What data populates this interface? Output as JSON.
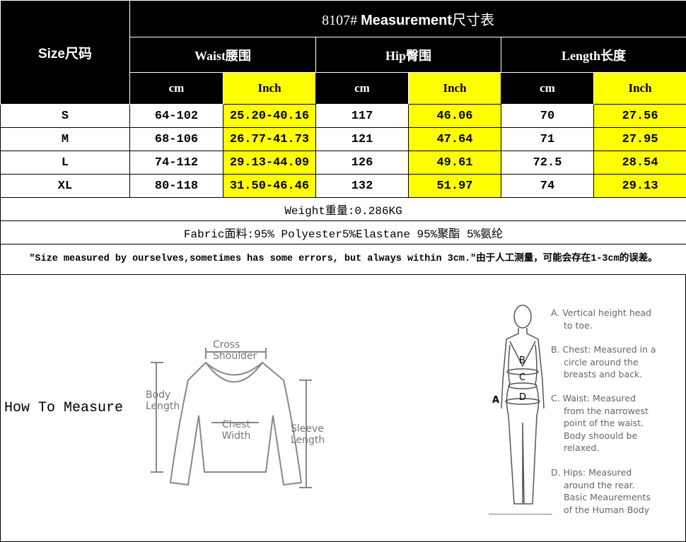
{
  "header": {
    "size": "Size尺码",
    "title_num": "8107#",
    "title_text": "Measurement",
    "title_cn": "尺寸表",
    "groups": [
      "Waist腰围",
      "Hip臀围",
      "Length长度"
    ],
    "units": [
      "cm",
      "Inch",
      "cm",
      "Inch",
      "cm",
      "Inch"
    ]
  },
  "rows": [
    {
      "size": "S",
      "waist_cm": "64-102",
      "waist_in": "25.20-40.16",
      "hip_cm": "117",
      "hip_in": "46.06",
      "len_cm": "70",
      "len_in": "27.56"
    },
    {
      "size": "M",
      "waist_cm": "68-106",
      "waist_in": "26.77-41.73",
      "hip_cm": "121",
      "hip_in": "47.64",
      "len_cm": "71",
      "len_in": "27.95"
    },
    {
      "size": "L",
      "waist_cm": "74-112",
      "waist_in": "29.13-44.09",
      "hip_cm": "126",
      "hip_in": "49.61",
      "len_cm": "72.5",
      "len_in": "28.54"
    },
    {
      "size": "XL",
      "waist_cm": "80-118",
      "waist_in": "31.50-46.46",
      "hip_cm": "132",
      "hip_in": "51.97",
      "len_cm": "74",
      "len_in": "29.13"
    }
  ],
  "weight": "Weight重量:0.286KG",
  "fabric": "Fabric面料:95% Polyester5%Elastane 95%聚酯 5%氨纶",
  "note": "\"Size measured by ourselves,sometimes has some errors, but always within 3cm.\"由于人工测量，可能会存在1-3cm的误差。",
  "how_to": "How To Measure",
  "sweater_labels": {
    "cross": "Cross Shoulder",
    "body": "Body Length",
    "chest": "Chest Width",
    "sleeve": "Sleeve Length"
  },
  "body_labels": {
    "a": "A",
    "b": "B",
    "c": "C",
    "d": "D"
  },
  "descriptions": [
    {
      "head": "A. Vertical height head",
      "rest": "to toe."
    },
    {
      "head": "B. Chest: Measured in a",
      "rest": "circle around the breasts and back."
    },
    {
      "head": "C. Waist: Measured",
      "rest": "from the narrowest point of the waist. Body shoould be relaxed."
    },
    {
      "head": "D. Hips: Measured",
      "rest": "around the rear. Basic Meaurements of the Human Body"
    }
  ],
  "colors": {
    "highlight": "#ffff00",
    "header_bg": "#000000"
  }
}
